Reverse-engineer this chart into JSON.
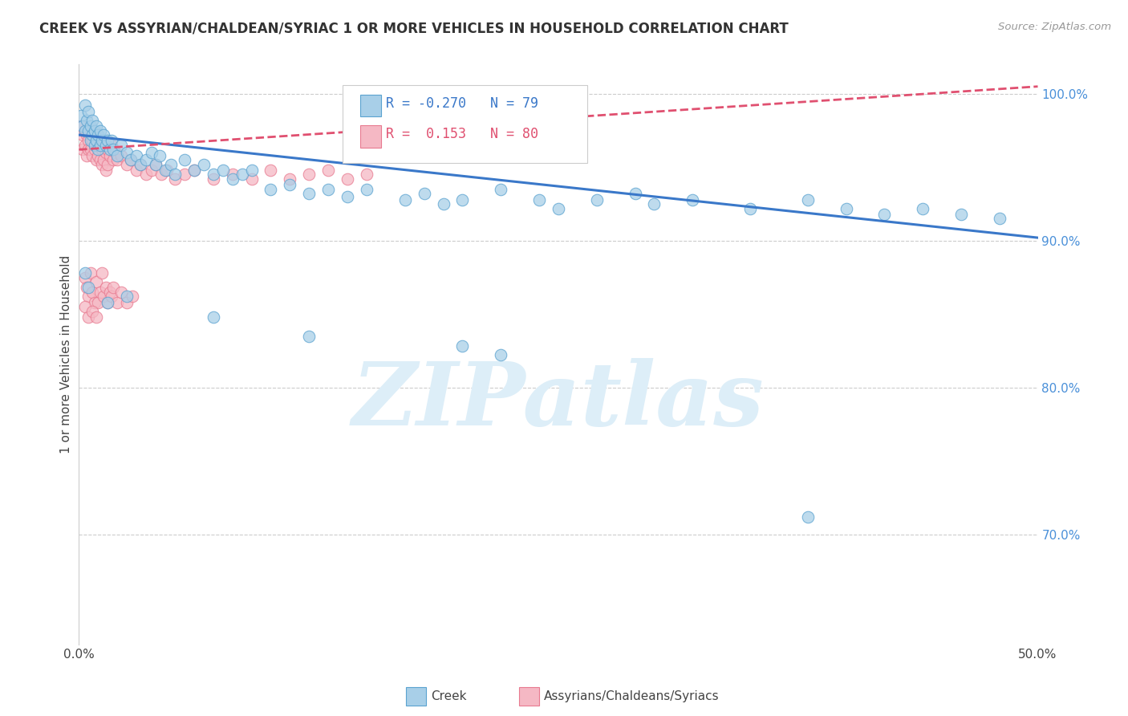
{
  "title": "CREEK VS ASSYRIAN/CHALDEAN/SYRIAC 1 OR MORE VEHICLES IN HOUSEHOLD CORRELATION CHART",
  "source": "Source: ZipAtlas.com",
  "ylabel": "1 or more Vehicles in Household",
  "x_min": 0.0,
  "x_max": 0.5,
  "y_min": 0.625,
  "y_max": 1.02,
  "x_ticks": [
    0.0,
    0.1,
    0.2,
    0.3,
    0.4,
    0.5
  ],
  "x_tick_labels": [
    "0.0%",
    "",
    "",
    "",
    "",
    "50.0%"
  ],
  "y_ticks": [
    0.7,
    0.8,
    0.9,
    1.0
  ],
  "y_tick_labels": [
    "70.0%",
    "80.0%",
    "90.0%",
    "100.0%"
  ],
  "creek_color": "#a8cfe8",
  "creek_edge_color": "#5ba3d0",
  "assyrian_color": "#f5b8c4",
  "assyrian_edge_color": "#e87a90",
  "creek_R": -0.27,
  "creek_N": 79,
  "assyrian_R": 0.153,
  "assyrian_N": 80,
  "blue_line_color": "#3a78c9",
  "pink_line_color": "#e05070",
  "watermark_color": "#ddeef8",
  "creek_scatter": [
    [
      0.001,
      0.985
    ],
    [
      0.002,
      0.978
    ],
    [
      0.003,
      0.975
    ],
    [
      0.003,
      0.992
    ],
    [
      0.004,
      0.982
    ],
    [
      0.005,
      0.975
    ],
    [
      0.005,
      0.988
    ],
    [
      0.006,
      0.978
    ],
    [
      0.006,
      0.968
    ],
    [
      0.007,
      0.982
    ],
    [
      0.007,
      0.972
    ],
    [
      0.008,
      0.975
    ],
    [
      0.008,
      0.965
    ],
    [
      0.009,
      0.978
    ],
    [
      0.009,
      0.968
    ],
    [
      0.01,
      0.972
    ],
    [
      0.01,
      0.962
    ],
    [
      0.011,
      0.975
    ],
    [
      0.011,
      0.965
    ],
    [
      0.012,
      0.968
    ],
    [
      0.013,
      0.972
    ],
    [
      0.014,
      0.965
    ],
    [
      0.015,
      0.968
    ],
    [
      0.016,
      0.962
    ],
    [
      0.017,
      0.968
    ],
    [
      0.018,
      0.962
    ],
    [
      0.02,
      0.958
    ],
    [
      0.022,
      0.965
    ],
    [
      0.025,
      0.96
    ],
    [
      0.027,
      0.955
    ],
    [
      0.03,
      0.958
    ],
    [
      0.032,
      0.952
    ],
    [
      0.035,
      0.955
    ],
    [
      0.038,
      0.96
    ],
    [
      0.04,
      0.952
    ],
    [
      0.042,
      0.958
    ],
    [
      0.045,
      0.948
    ],
    [
      0.048,
      0.952
    ],
    [
      0.05,
      0.945
    ],
    [
      0.055,
      0.955
    ],
    [
      0.06,
      0.948
    ],
    [
      0.065,
      0.952
    ],
    [
      0.07,
      0.945
    ],
    [
      0.075,
      0.948
    ],
    [
      0.08,
      0.942
    ],
    [
      0.085,
      0.945
    ],
    [
      0.09,
      0.948
    ],
    [
      0.1,
      0.935
    ],
    [
      0.11,
      0.938
    ],
    [
      0.12,
      0.932
    ],
    [
      0.13,
      0.935
    ],
    [
      0.14,
      0.93
    ],
    [
      0.15,
      0.935
    ],
    [
      0.17,
      0.928
    ],
    [
      0.18,
      0.932
    ],
    [
      0.19,
      0.925
    ],
    [
      0.2,
      0.928
    ],
    [
      0.22,
      0.935
    ],
    [
      0.24,
      0.928
    ],
    [
      0.25,
      0.922
    ],
    [
      0.27,
      0.928
    ],
    [
      0.29,
      0.932
    ],
    [
      0.3,
      0.925
    ],
    [
      0.32,
      0.928
    ],
    [
      0.35,
      0.922
    ],
    [
      0.38,
      0.928
    ],
    [
      0.4,
      0.922
    ],
    [
      0.42,
      0.918
    ],
    [
      0.44,
      0.922
    ],
    [
      0.46,
      0.918
    ],
    [
      0.48,
      0.915
    ],
    [
      0.003,
      0.878
    ],
    [
      0.025,
      0.862
    ],
    [
      0.07,
      0.848
    ],
    [
      0.12,
      0.835
    ],
    [
      0.2,
      0.828
    ],
    [
      0.22,
      0.822
    ],
    [
      0.005,
      0.868
    ],
    [
      0.015,
      0.858
    ],
    [
      0.38,
      0.712
    ]
  ],
  "assyrian_scatter": [
    [
      0.001,
      0.978
    ],
    [
      0.002,
      0.972
    ],
    [
      0.002,
      0.962
    ],
    [
      0.003,
      0.975
    ],
    [
      0.003,
      0.965
    ],
    [
      0.004,
      0.972
    ],
    [
      0.004,
      0.958
    ],
    [
      0.005,
      0.968
    ],
    [
      0.005,
      0.962
    ],
    [
      0.006,
      0.975
    ],
    [
      0.006,
      0.962
    ],
    [
      0.007,
      0.968
    ],
    [
      0.007,
      0.958
    ],
    [
      0.008,
      0.972
    ],
    [
      0.008,
      0.962
    ],
    [
      0.009,
      0.968
    ],
    [
      0.009,
      0.955
    ],
    [
      0.01,
      0.965
    ],
    [
      0.01,
      0.958
    ],
    [
      0.011,
      0.968
    ],
    [
      0.011,
      0.955
    ],
    [
      0.012,
      0.962
    ],
    [
      0.012,
      0.952
    ],
    [
      0.013,
      0.965
    ],
    [
      0.013,
      0.955
    ],
    [
      0.014,
      0.96
    ],
    [
      0.014,
      0.948
    ],
    [
      0.015,
      0.962
    ],
    [
      0.015,
      0.952
    ],
    [
      0.016,
      0.958
    ],
    [
      0.017,
      0.965
    ],
    [
      0.018,
      0.955
    ],
    [
      0.019,
      0.96
    ],
    [
      0.02,
      0.955
    ],
    [
      0.022,
      0.958
    ],
    [
      0.025,
      0.952
    ],
    [
      0.027,
      0.955
    ],
    [
      0.03,
      0.948
    ],
    [
      0.032,
      0.952
    ],
    [
      0.035,
      0.945
    ],
    [
      0.038,
      0.948
    ],
    [
      0.04,
      0.952
    ],
    [
      0.043,
      0.945
    ],
    [
      0.046,
      0.948
    ],
    [
      0.05,
      0.942
    ],
    [
      0.055,
      0.945
    ],
    [
      0.06,
      0.948
    ],
    [
      0.07,
      0.942
    ],
    [
      0.08,
      0.945
    ],
    [
      0.09,
      0.942
    ],
    [
      0.1,
      0.948
    ],
    [
      0.11,
      0.942
    ],
    [
      0.12,
      0.945
    ],
    [
      0.13,
      0.948
    ],
    [
      0.14,
      0.942
    ],
    [
      0.15,
      0.945
    ],
    [
      0.003,
      0.875
    ],
    [
      0.004,
      0.868
    ],
    [
      0.005,
      0.862
    ],
    [
      0.006,
      0.878
    ],
    [
      0.007,
      0.865
    ],
    [
      0.008,
      0.858
    ],
    [
      0.009,
      0.872
    ],
    [
      0.01,
      0.858
    ],
    [
      0.011,
      0.865
    ],
    [
      0.012,
      0.878
    ],
    [
      0.013,
      0.862
    ],
    [
      0.014,
      0.868
    ],
    [
      0.015,
      0.858
    ],
    [
      0.016,
      0.865
    ],
    [
      0.017,
      0.862
    ],
    [
      0.018,
      0.868
    ],
    [
      0.02,
      0.858
    ],
    [
      0.022,
      0.865
    ],
    [
      0.025,
      0.858
    ],
    [
      0.028,
      0.862
    ],
    [
      0.003,
      0.855
    ],
    [
      0.005,
      0.848
    ],
    [
      0.007,
      0.852
    ],
    [
      0.009,
      0.848
    ]
  ],
  "blue_line_x0": 0.0,
  "blue_line_y0": 0.972,
  "blue_line_x1": 0.5,
  "blue_line_y1": 0.902,
  "pink_line_x0": 0.0,
  "pink_line_y0": 0.962,
  "pink_line_x1": 0.5,
  "pink_line_y1": 1.005
}
